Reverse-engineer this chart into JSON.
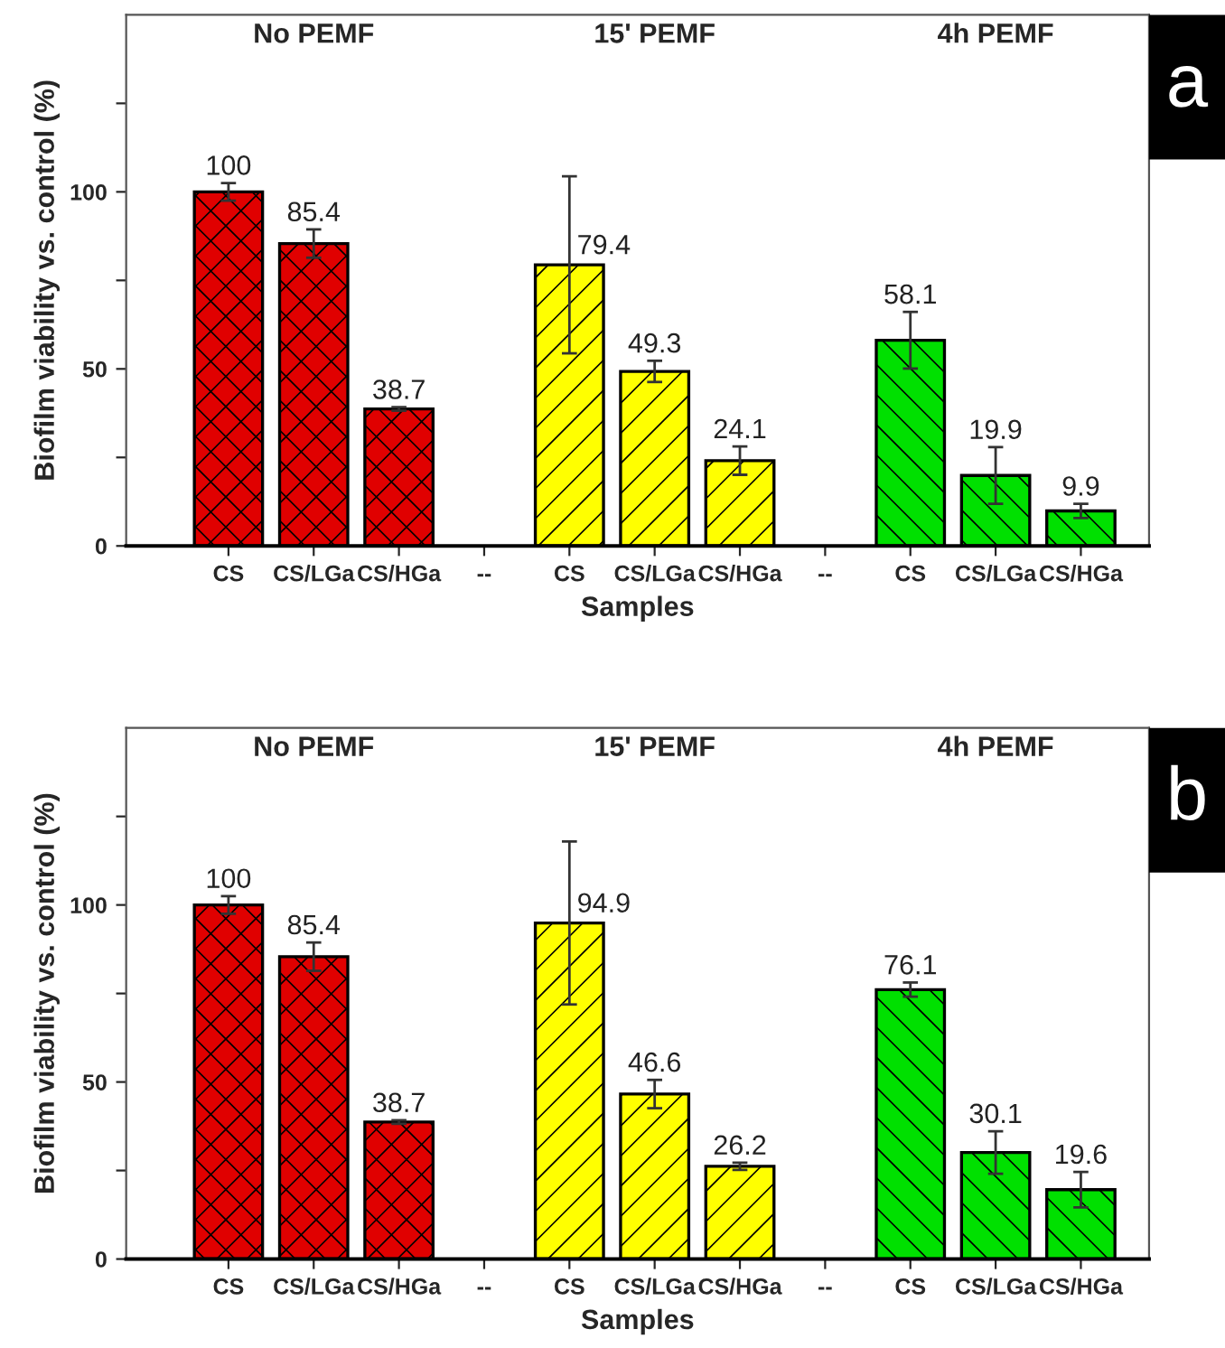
{
  "chart_data": [
    {
      "type": "bar",
      "xlabel": "Samples",
      "ylabel": "Biofilm viability vs. control (%)",
      "categories": [
        "CS",
        "CS/LGa",
        "CS/HGa",
        "--",
        "CS",
        "CS/LGa",
        "CS/HGa",
        "--",
        "CS",
        "CS/LGa",
        "CS/HGa"
      ],
      "series": [
        {
          "color": "#e00000",
          "values": [
            100,
            85.4,
            38.7,
            null,
            null,
            null,
            null,
            null,
            null,
            null,
            null
          ],
          "errors": [
            2.5,
            4,
            0.5,
            null,
            null,
            null,
            null,
            null,
            null,
            null,
            null
          ]
        },
        {
          "color": "#ffff00",
          "values": [
            null,
            null,
            null,
            null,
            79.4,
            49.3,
            24.1,
            null,
            null,
            null,
            null
          ],
          "errors": [
            null,
            null,
            null,
            null,
            25,
            3,
            4,
            null,
            null,
            null,
            null
          ]
        },
        {
          "color": "#00e000",
          "values": [
            null,
            null,
            null,
            null,
            null,
            null,
            null,
            null,
            58.1,
            19.9,
            9.9
          ],
          "errors": [
            null,
            null,
            null,
            null,
            null,
            null,
            null,
            null,
            8,
            8,
            2
          ]
        }
      ],
      "ylim": [
        0,
        150
      ],
      "yticks": [
        0,
        {
          "value": 25,
          "label": null
        },
        50,
        {
          "value": 75,
          "label": null
        },
        100,
        {
          "value": 125,
          "label": null
        }
      ],
      "data_labels": true,
      "grid": false,
      "legend": false,
      "annotations": [
        "No PEMF",
        "15' PEMF",
        "4h PEMF",
        "a"
      ]
    },
    {
      "type": "bar",
      "xlabel": "Samples",
      "ylabel": "Biofilm viability vs. control (%)",
      "categories": [
        "CS",
        "CS/LGa",
        "CS/HGa",
        "--",
        "CS",
        "CS/LGa",
        "CS/HGa",
        "--",
        "CS",
        "CS/LGa",
        "CS/HGa"
      ],
      "series": [
        {
          "color": "#e00000",
          "values": [
            100,
            85.4,
            38.7,
            null,
            null,
            null,
            null,
            null,
            null,
            null,
            null
          ],
          "errors": [
            2.5,
            4,
            0.5,
            null,
            null,
            null,
            null,
            null,
            null,
            null,
            null
          ]
        },
        {
          "color": "#ffff00",
          "values": [
            null,
            null,
            null,
            null,
            94.9,
            46.6,
            26.2,
            null,
            null,
            null,
            null
          ],
          "errors": [
            null,
            null,
            null,
            null,
            23,
            4,
            1,
            null,
            null,
            null,
            null
          ]
        },
        {
          "color": "#00e000",
          "values": [
            null,
            null,
            null,
            null,
            null,
            null,
            null,
            null,
            76.1,
            30.1,
            19.6
          ],
          "errors": [
            null,
            null,
            null,
            null,
            null,
            null,
            null,
            null,
            2,
            6,
            5
          ]
        }
      ],
      "ylim": [
        0,
        150
      ],
      "yticks": [
        0,
        {
          "value": 25,
          "label": null
        },
        50,
        {
          "value": 75,
          "label": null
        },
        100,
        {
          "value": 125,
          "label": null
        }
      ],
      "data_labels": true,
      "grid": false,
      "legend": false,
      "annotations": [
        "No PEMF",
        "15' PEMF",
        "4h PEMF",
        "b"
      ]
    }
  ]
}
